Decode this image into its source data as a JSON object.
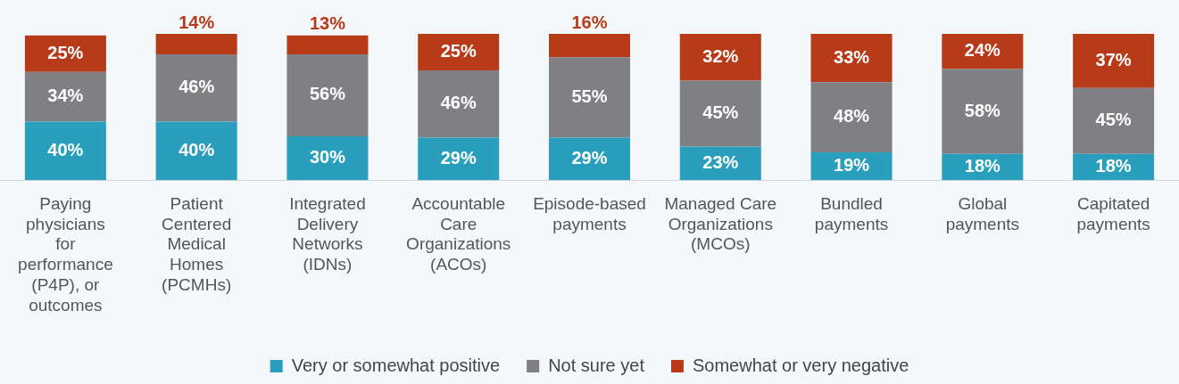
{
  "chart_data": {
    "type": "bar",
    "stacked": true,
    "legend": "bottom",
    "grid": false,
    "categories": [
      "Paying physicians for performance (P4P), or outcomes",
      "Patient Centered Medical Homes (PCMHs)",
      "Integrated Delivery Networks (IDNs)",
      "Accountable Care Organizations (ACOs)",
      "Episode-based payments",
      "Managed Care Organizations (MCOs)",
      "Bundled payments",
      "Global payments",
      "Capitated payments"
    ],
    "series": [
      {
        "name": "Very or somewhat positive",
        "color": "#2a9fbd",
        "values": [
          40,
          40,
          30,
          29,
          29,
          23,
          19,
          18,
          18
        ],
        "value_labels": [
          "40%",
          "40%",
          "30%",
          "29%",
          "29%",
          "23%",
          "19%",
          "18%",
          "18%"
        ]
      },
      {
        "name": "Not sure yet",
        "color": "#808084",
        "values": [
          34,
          46,
          56,
          46,
          55,
          45,
          48,
          58,
          45
        ],
        "value_labels": [
          "34%",
          "46%",
          "56%",
          "46%",
          "55%",
          "45%",
          "48%",
          "58%",
          "45%"
        ]
      },
      {
        "name": "Somewhat or very negative",
        "color": "#b83b19",
        "values": [
          25,
          14,
          13,
          25,
          16,
          32,
          33,
          24,
          37
        ],
        "value_labels": [
          "25%",
          "14%",
          "13%",
          "25%",
          "16%",
          "32%",
          "33%",
          "24%",
          "37%"
        ]
      }
    ]
  }
}
